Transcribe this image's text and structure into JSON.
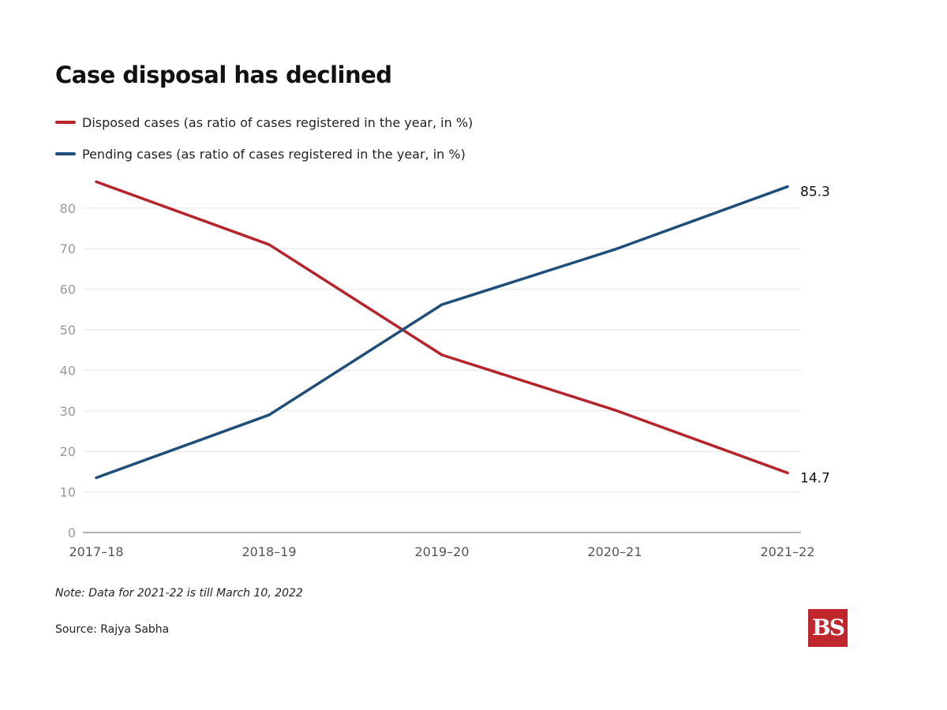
{
  "chart_data": {
    "type": "line",
    "title": "Case disposal has declined",
    "categories": [
      "2017-18",
      "2018-19",
      "2019-20",
      "2020-21",
      "2021-22"
    ],
    "series": [
      {
        "name": "Disposed cases (as ratio of cases registered in the year, in %)",
        "color": "#b5252b",
        "values": [
          86.5,
          71,
          43.8,
          30.2,
          14.7
        ],
        "end_label": "14.7"
      },
      {
        "name": "Pending cases (as ratio of cases registered in the year, in %)",
        "color": "#1e4e79",
        "values": [
          13.5,
          29,
          56.2,
          69.8,
          85.3
        ],
        "end_label": "85.3"
      }
    ],
    "ylim": [
      0,
      90
    ],
    "yticks": [
      0,
      10,
      20,
      30,
      40,
      50,
      60,
      70,
      80
    ],
    "xlabel": "",
    "ylabel": "",
    "grid": true,
    "legend": "top-left"
  },
  "note": "Note: Data for 2021-22 is till March 10, 2022",
  "source": "Source: Rajya Sabha",
  "logo": {
    "text": "BS",
    "color": "#c0272d"
  }
}
